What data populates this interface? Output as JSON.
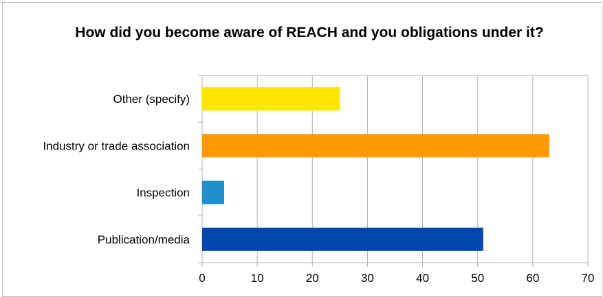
{
  "chart_data": {
    "type": "bar",
    "orientation": "horizontal",
    "title": "How did you become aware of REACH and you obligations under it?",
    "categories": [
      "Other (specify)",
      "Industry or trade association",
      "Inspection",
      "Publication/media"
    ],
    "values": [
      25,
      63,
      4,
      51
    ],
    "colors": [
      "#ffe500",
      "#ff9900",
      "#1f8fcf",
      "#0047ab"
    ],
    "xlim": [
      0,
      70
    ],
    "xticks": [
      0,
      10,
      20,
      30,
      40,
      50,
      60,
      70
    ],
    "xlabel": "",
    "ylabel": "",
    "grid": "vertical",
    "legend": "none"
  }
}
